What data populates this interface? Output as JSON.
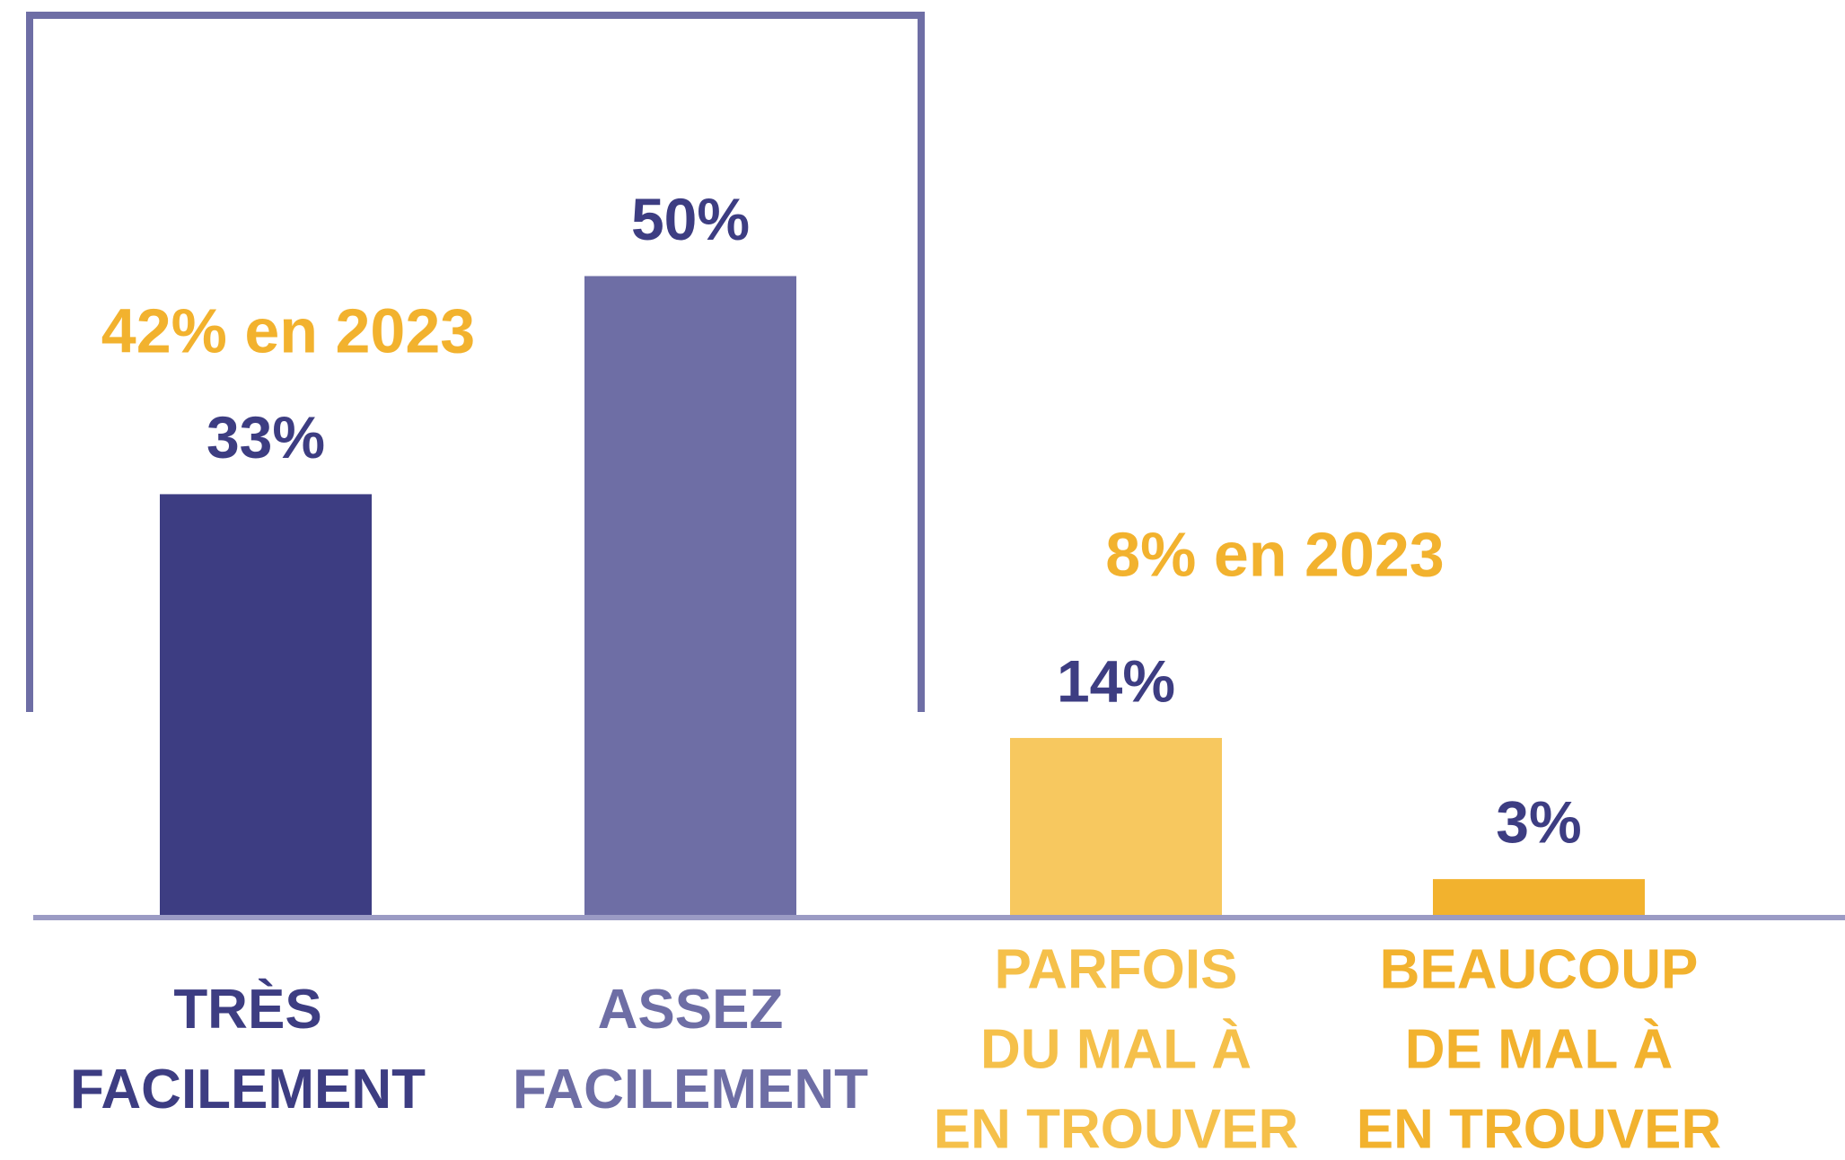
{
  "chart_data": {
    "type": "bar",
    "categories": [
      [
        "TRÈS",
        "FACILEMENT"
      ],
      [
        "ASSEZ",
        "FACILEMENT"
      ],
      [
        "PARFOIS",
        "DU MAL À",
        "EN TROUVER"
      ],
      [
        "BEAUCOUP",
        "DE MAL À",
        "EN TROUVER"
      ]
    ],
    "values": [
      33,
      50,
      14,
      3
    ],
    "value_labels": [
      "33%",
      "50%",
      "14%",
      "3%"
    ],
    "colors": [
      "#3d3d82",
      "#6e6ea5",
      "#f7c85f",
      "#f2b22e"
    ],
    "annotations": [
      "42% en 2023",
      "8% en 2023"
    ]
  }
}
